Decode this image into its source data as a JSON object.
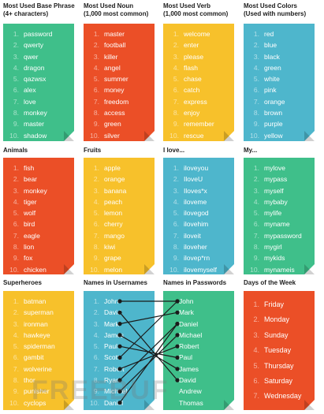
{
  "panels": [
    {
      "id": "base",
      "title": [
        "Most Used Base Phrase",
        "(4+ characters)"
      ],
      "color": "green",
      "items": [
        "password",
        "qwerty",
        "qwer",
        "dragon",
        "qazwsx",
        "alex",
        "love",
        "monkey",
        "master",
        "shadow"
      ]
    },
    {
      "id": "noun",
      "title": [
        "Most Used Noun",
        "(1,000 most common)"
      ],
      "color": "red",
      "items": [
        "master",
        "football",
        "killer",
        "angel",
        "summer",
        "money",
        "freedom",
        "access",
        "green",
        "silver"
      ]
    },
    {
      "id": "verb",
      "title": [
        "Most Used Verb",
        "(1,000 most common)"
      ],
      "color": "yellow",
      "items": [
        "welcome",
        "enter",
        "please",
        "flash",
        "chase",
        "catch",
        "express",
        "enjoy",
        "remember",
        "rescue"
      ]
    },
    {
      "id": "colors",
      "title": [
        "Most Used Colors",
        "(Used with numbers)"
      ],
      "color": "blue",
      "items": [
        "red",
        "blue",
        "black",
        "green",
        "white",
        "pink",
        "orange",
        "brown",
        "purple",
        "yellow"
      ]
    },
    {
      "id": "animals",
      "title": [
        "Animals"
      ],
      "color": "red",
      "items": [
        "fish",
        "bear",
        "monkey",
        "tiger",
        "wolf",
        "bird",
        "eagle",
        "lion",
        "fox",
        "chicken"
      ]
    },
    {
      "id": "fruits",
      "title": [
        "Fruits"
      ],
      "color": "yellow",
      "items": [
        "apple",
        "orange",
        "banana",
        "peach",
        "lemon",
        "cherry",
        "mango",
        "kiwi",
        "grape",
        "melon"
      ]
    },
    {
      "id": "ilove",
      "title": [
        "I love..."
      ],
      "color": "blue",
      "items": [
        "iloveyou",
        "IloveU",
        "Iloves*x",
        "iloveme",
        "ilovegod",
        "ilovehim",
        "iloveit",
        "iloveher",
        "ilovep*rn",
        "ilovemyself"
      ]
    },
    {
      "id": "my",
      "title": [
        "My..."
      ],
      "color": "green",
      "items": [
        "mylove",
        "mypass",
        "myself",
        "mybaby",
        "mylife",
        "myname",
        "mypassword",
        "mygirl",
        "mykids",
        "mynameis"
      ]
    },
    {
      "id": "heroes",
      "title": [
        "Superheroes"
      ],
      "color": "yellow",
      "items": [
        "batman",
        "superman",
        "ironman",
        "hawkeye",
        "spiderman",
        "gambit",
        "wolverine",
        "thor",
        "punisher",
        "cyclops"
      ]
    },
    {
      "id": "usernames",
      "title": [
        "Names in Usernames"
      ],
      "color": "blue",
      "items": [
        "John",
        "David",
        "Mark",
        "James",
        "Paul",
        "Scott",
        "Robert",
        "Ryan",
        "Michael",
        "Daniel"
      ]
    },
    {
      "id": "passwords",
      "title": [
        "Names in Passwords"
      ],
      "color": "green",
      "numbered": false,
      "items": [
        "John",
        "Mark",
        "Daniel",
        "Michael",
        "Robert",
        "Paul",
        "James",
        "David",
        "Andrew",
        "Thomas"
      ]
    },
    {
      "id": "days",
      "title": [
        "Days of the Week"
      ],
      "color": "red",
      "items": [
        "Friday",
        "Monday",
        "Sunday",
        "Tuesday",
        "Thursday",
        "Saturday",
        "Wednesday"
      ]
    }
  ],
  "connections": [
    [
      0,
      0
    ],
    [
      1,
      7
    ],
    [
      2,
      1
    ],
    [
      3,
      6
    ],
    [
      4,
      5
    ],
    [
      5,
      0
    ],
    [
      6,
      4
    ],
    [
      7,
      2
    ],
    [
      8,
      3
    ],
    [
      9,
      2
    ]
  ],
  "watermark": "FREEBUF"
}
